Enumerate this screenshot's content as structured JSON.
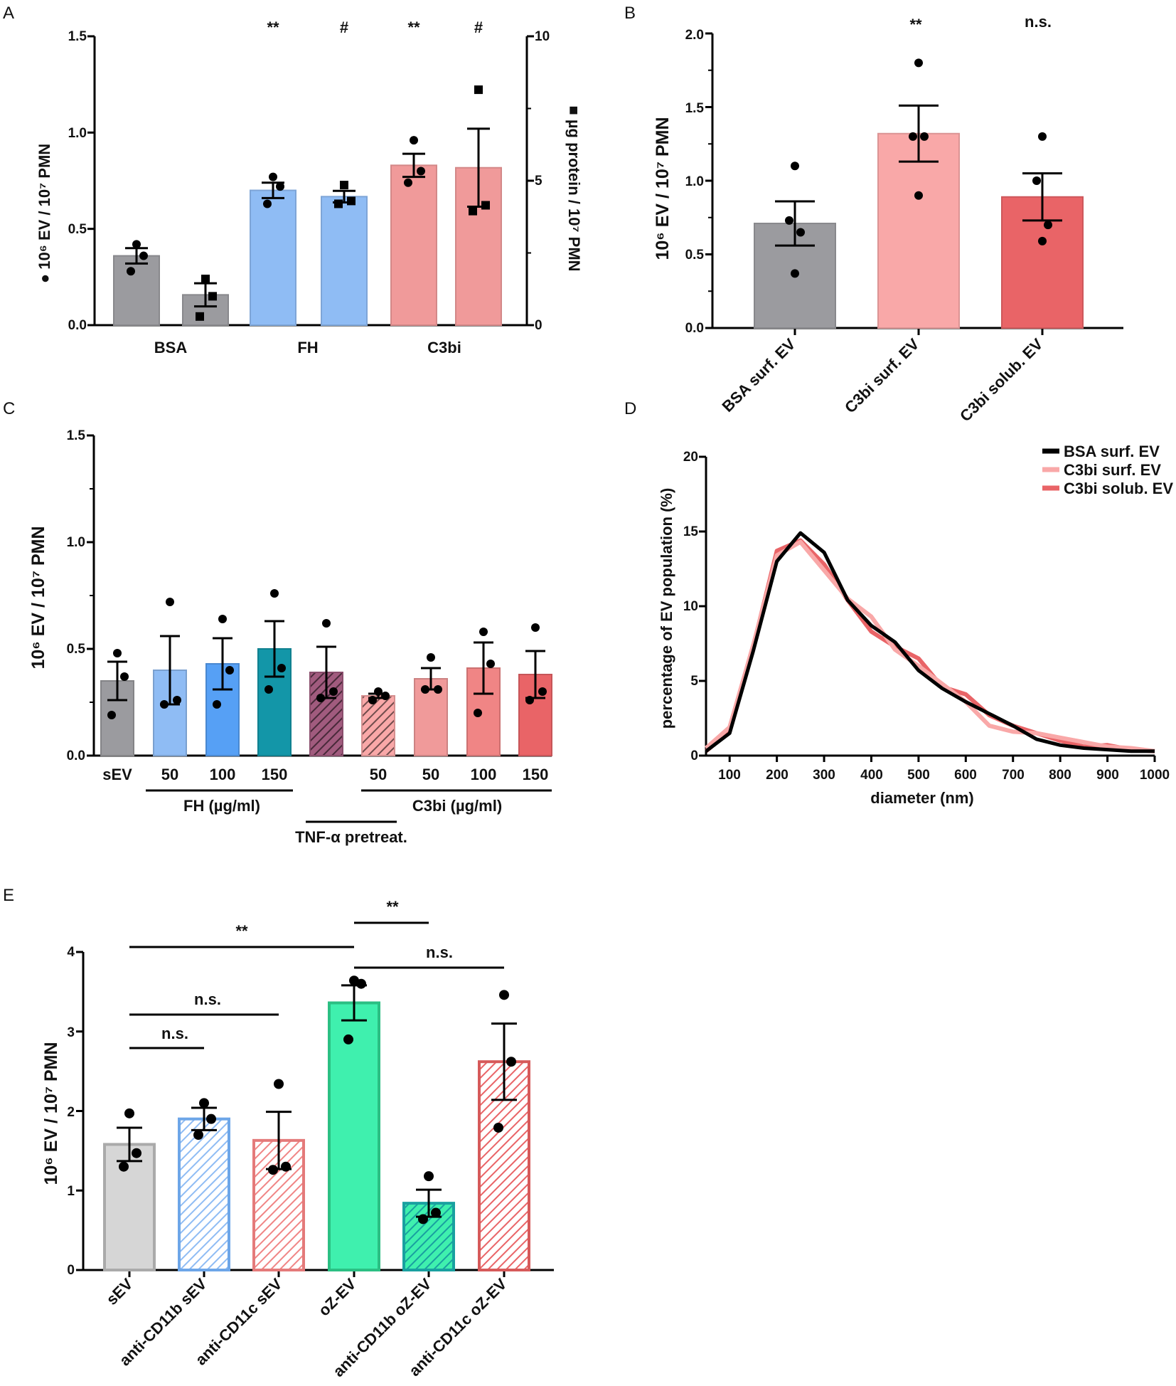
{
  "colors": {
    "gray": "#9b9b9f",
    "blue": "#8fbcf4",
    "blue2": "#56a0f5",
    "teal": "#1396a8",
    "pink": "#f09a9a",
    "pink_light": "#f9a8a8",
    "red": "#e96467",
    "red2": "#f08585",
    "green": "#3ff0ae",
    "light_gray": "#d6d6d6",
    "purple": "#a15b7e"
  },
  "chart_data": [
    {
      "panel": "A",
      "type": "bar",
      "ylabel_left": "● 10⁶ EV / 10⁷ PMN",
      "ylabel_right": "■ µg protein / 10⁷ PMN",
      "ylim_left": [
        0,
        1.5
      ],
      "ylim_right": [
        0,
        10
      ],
      "yticks_left": [
        "0.0",
        "0.5",
        "1.0",
        "1.5"
      ],
      "yticks_right": [
        "0",
        "5",
        "10"
      ],
      "groups": [
        "BSA",
        "FH",
        "C3bi"
      ],
      "bars": [
        {
          "group": "BSA",
          "axis": "left",
          "value": 0.36,
          "sem": 0.04,
          "points": [
            0.42,
            0.36,
            0.28
          ],
          "color": "gray",
          "marker": "circle",
          "sig": ""
        },
        {
          "group": "BSA",
          "axis": "right",
          "value": 1.05,
          "sem": 0.4,
          "points": [
            1.6,
            1.0,
            0.3
          ],
          "color": "gray",
          "marker": "square",
          "sig": ""
        },
        {
          "group": "FH",
          "axis": "left",
          "value": 0.7,
          "sem": 0.04,
          "points": [
            0.77,
            0.72,
            0.63
          ],
          "color": "blue",
          "marker": "circle",
          "sig": "**"
        },
        {
          "group": "FH",
          "axis": "right",
          "value": 4.45,
          "sem": 0.2,
          "points": [
            4.85,
            4.3,
            4.2
          ],
          "color": "blue",
          "marker": "square",
          "sig": "#"
        },
        {
          "group": "C3bi",
          "axis": "left",
          "value": 0.83,
          "sem": 0.06,
          "points": [
            0.96,
            0.8,
            0.74
          ],
          "color": "pink",
          "marker": "circle",
          "sig": "**"
        },
        {
          "group": "C3bi",
          "axis": "right",
          "value": 5.45,
          "sem": 1.35,
          "points": [
            8.15,
            4.15,
            3.95
          ],
          "color": "pink",
          "marker": "square",
          "sig": "#"
        }
      ]
    },
    {
      "panel": "B",
      "type": "bar",
      "ylabel": "10⁶ EV / 10⁷ PMN",
      "ylim": [
        0,
        2.0
      ],
      "yticks": [
        "0.0",
        "0.5",
        "1.0",
        "1.5",
        "2.0"
      ],
      "categories": [
        "BSA surf. EV",
        "C3bi surf. EV",
        "C3bi solub. EV"
      ],
      "values": [
        0.71,
        1.32,
        0.89
      ],
      "sem": [
        0.15,
        0.19,
        0.16
      ],
      "points": [
        [
          1.1,
          0.73,
          0.65,
          0.37
        ],
        [
          1.8,
          1.3,
          1.3,
          0.9
        ],
        [
          1.3,
          1.0,
          0.7,
          0.59
        ]
      ],
      "colors": [
        "gray",
        "pink_light",
        "red"
      ],
      "sig": [
        "",
        "**",
        "n.s."
      ]
    },
    {
      "panel": "C",
      "type": "bar",
      "ylabel": "10⁶ EV / 10⁷ PMN",
      "ylim": [
        0,
        1.5
      ],
      "yticks": [
        "0.0",
        "0.5",
        "1.0",
        "1.5"
      ],
      "categories": [
        "sEV",
        "50",
        "100",
        "150",
        "",
        "50",
        "50",
        "100",
        "150"
      ],
      "values": [
        0.35,
        0.4,
        0.43,
        0.5,
        0.39,
        0.28,
        0.36,
        0.41,
        0.38
      ],
      "sem": [
        0.09,
        0.16,
        0.12,
        0.13,
        0.12,
        0.01,
        0.05,
        0.12,
        0.11
      ],
      "points": [
        [
          0.48,
          0.37,
          0.19
        ],
        [
          0.72,
          0.26,
          0.24
        ],
        [
          0.64,
          0.4,
          0.24
        ],
        [
          0.76,
          0.41,
          0.31
        ],
        [
          0.62,
          0.3,
          0.27
        ],
        [
          0.3,
          0.28,
          0.26
        ],
        [
          0.46,
          0.31,
          0.31
        ],
        [
          0.58,
          0.43,
          0.2
        ],
        [
          0.6,
          0.3,
          0.26
        ]
      ],
      "colors": [
        "gray",
        "blue",
        "blue2",
        "teal",
        "purple",
        "pink_light",
        "pink",
        "red2",
        "red"
      ],
      "hatched": [
        false,
        false,
        false,
        false,
        true,
        true,
        false,
        false,
        false
      ],
      "group_labels": {
        "fh": "FH (µg/ml)",
        "c3bi": "C3bi (µg/ml)",
        "tnf": "TNF-α pretreat."
      }
    },
    {
      "panel": "D",
      "type": "line",
      "xlabel": "diameter (nm)",
      "ylabel": "percentage of EV population (%)",
      "xlim": [
        50,
        1000
      ],
      "ylim": [
        0,
        20
      ],
      "xticks": [
        "100",
        "200",
        "300",
        "400",
        "500",
        "600",
        "700",
        "800",
        "900",
        "1000"
      ],
      "yticks": [
        "0",
        "5",
        "10",
        "15",
        "20"
      ],
      "x": [
        50,
        100,
        150,
        200,
        250,
        300,
        350,
        400,
        450,
        500,
        550,
        600,
        650,
        700,
        750,
        800,
        850,
        900,
        950,
        1000
      ],
      "series": [
        {
          "name": "C3bi solub. EV",
          "color": "red",
          "values": [
            0.3,
            1.6,
            7.3,
            13.7,
            14.4,
            12.8,
            10.4,
            8.3,
            7.3,
            6.5,
            4.6,
            4.1,
            2.7,
            2.0,
            1.5,
            1.0,
            0.6,
            0.7,
            0.4,
            0.3
          ]
        },
        {
          "name": "C3bi surf. EV",
          "color": "pink_light",
          "values": [
            0.5,
            1.9,
            7.4,
            13.4,
            14.3,
            12.4,
            10.5,
            9.3,
            7.1,
            6.0,
            4.8,
            3.6,
            2.0,
            1.6,
            1.5,
            1.2,
            0.9,
            0.6,
            0.5,
            0.3
          ]
        },
        {
          "name": "BSA surf. EV",
          "color": "black",
          "values": [
            0.3,
            1.5,
            7.0,
            13.0,
            14.9,
            13.6,
            10.4,
            8.7,
            7.6,
            5.7,
            4.5,
            3.6,
            2.8,
            2.0,
            1.1,
            0.7,
            0.5,
            0.4,
            0.3,
            0.3
          ]
        }
      ]
    },
    {
      "panel": "E",
      "type": "bar",
      "ylabel": "10⁶ EV / 10⁷ PMN",
      "ylim": [
        0,
        4
      ],
      "yticks": [
        "0",
        "1",
        "2",
        "3",
        "4"
      ],
      "categories": [
        "sEV",
        "anti-CD11b sEV",
        "anti-CD11c sEV",
        "oZ-EV",
        "anti-CD11b oZ-EV",
        "anti-CD11c oZ-EV"
      ],
      "values": [
        1.58,
        1.9,
        1.63,
        3.36,
        0.84,
        2.62
      ],
      "sem": [
        0.21,
        0.14,
        0.36,
        0.22,
        0.17,
        0.48
      ],
      "points": [
        [
          1.97,
          1.47,
          1.3
        ],
        [
          2.1,
          1.9,
          1.7
        ],
        [
          2.34,
          1.3,
          1.26
        ],
        [
          3.64,
          3.6,
          2.9
        ],
        [
          1.18,
          0.72,
          0.64
        ],
        [
          3.46,
          2.62,
          1.79
        ]
      ],
      "colors": [
        "light_gray",
        "blue",
        "red2",
        "green",
        "teal",
        "red"
      ],
      "stroke_colors": [
        "#aaaaaa",
        "#6da6e8",
        "#e47a7a",
        "#2bbf83",
        "#19a0a0",
        "#d65a5a"
      ],
      "hatched": [
        false,
        true,
        true,
        false,
        true,
        true
      ],
      "comparisons": [
        {
          "from": 0,
          "to": 1,
          "label": "n.s."
        },
        {
          "from": 0,
          "to": 2,
          "label": "n.s."
        },
        {
          "from": 0,
          "to": 3,
          "label": "**"
        },
        {
          "from": 3,
          "to": 4,
          "label": "**"
        },
        {
          "from": 3,
          "to": 5,
          "label": "n.s."
        }
      ]
    }
  ],
  "panels": [
    "A",
    "B",
    "C",
    "D",
    "E"
  ]
}
